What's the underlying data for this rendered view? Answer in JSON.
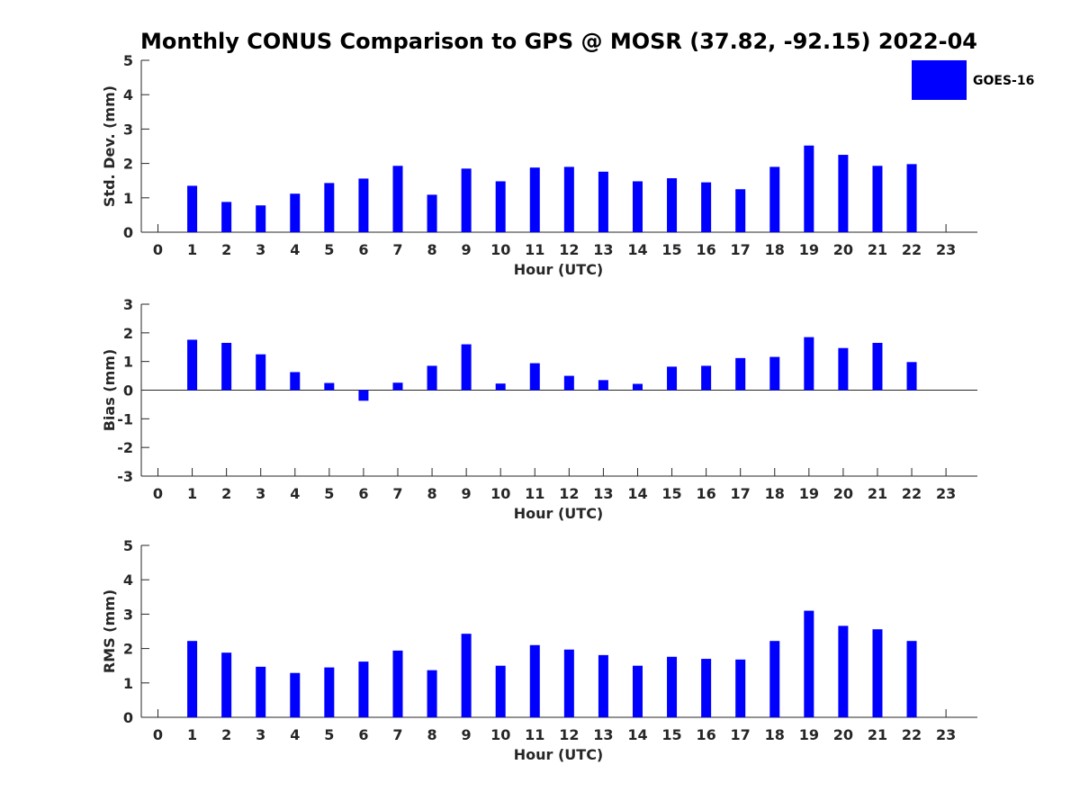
{
  "title": "Monthly CONUS Comparison to GPS @ MOSR (37.82, -92.15) 2022-04",
  "legend": {
    "label": "GOES-16",
    "color": "#0000ff"
  },
  "chart_data": [
    {
      "type": "bar",
      "name": "std-dev",
      "xlabel": "Hour (UTC)",
      "ylabel": "Std. Dev. (mm)",
      "ylim": [
        0,
        5
      ],
      "yticks": [
        "0",
        "1",
        "2",
        "3",
        "4",
        "5"
      ],
      "xticks": [
        "0",
        "1",
        "2",
        "3",
        "4",
        "5",
        "6",
        "7",
        "8",
        "9",
        "10",
        "11",
        "12",
        "13",
        "14",
        "15",
        "16",
        "17",
        "18",
        "19",
        "20",
        "21",
        "22",
        "23"
      ],
      "series": [
        {
          "name": "GOES-16",
          "color": "#0000ff",
          "values": [
            null,
            1.35,
            0.88,
            0.78,
            1.12,
            1.43,
            1.56,
            1.93,
            1.09,
            1.85,
            1.48,
            1.88,
            1.9,
            1.76,
            1.48,
            1.57,
            1.45,
            1.25,
            1.9,
            2.52,
            2.25,
            1.93,
            1.98,
            null
          ]
        }
      ]
    },
    {
      "type": "bar",
      "name": "bias",
      "xlabel": "Hour (UTC)",
      "ylabel": "Bias (mm)",
      "ylim": [
        -3,
        3
      ],
      "yticks": [
        "-3",
        "-2",
        "-1",
        "0",
        "1",
        "2",
        "3"
      ],
      "xticks": [
        "0",
        "1",
        "2",
        "3",
        "4",
        "5",
        "6",
        "7",
        "8",
        "9",
        "10",
        "11",
        "12",
        "13",
        "14",
        "15",
        "16",
        "17",
        "18",
        "19",
        "20",
        "21",
        "22",
        "23"
      ],
      "series": [
        {
          "name": "GOES-16",
          "color": "#0000ff",
          "values": [
            null,
            1.76,
            1.65,
            1.25,
            0.63,
            0.25,
            -0.37,
            0.26,
            0.85,
            1.6,
            0.23,
            0.94,
            0.5,
            0.35,
            0.22,
            0.82,
            0.85,
            1.12,
            1.16,
            1.85,
            1.47,
            1.65,
            0.98,
            null
          ]
        }
      ]
    },
    {
      "type": "bar",
      "name": "rms",
      "xlabel": "Hour (UTC)",
      "ylabel": "RMS (mm)",
      "ylim": [
        0,
        5
      ],
      "yticks": [
        "0",
        "1",
        "2",
        "3",
        "4",
        "5"
      ],
      "xticks": [
        "0",
        "1",
        "2",
        "3",
        "4",
        "5",
        "6",
        "7",
        "8",
        "9",
        "10",
        "11",
        "12",
        "13",
        "14",
        "15",
        "16",
        "17",
        "18",
        "19",
        "20",
        "21",
        "22",
        "23"
      ],
      "series": [
        {
          "name": "GOES-16",
          "color": "#0000ff",
          "values": [
            null,
            2.22,
            1.88,
            1.47,
            1.29,
            1.45,
            1.62,
            1.94,
            1.37,
            2.43,
            1.5,
            2.1,
            1.97,
            1.81,
            1.5,
            1.76,
            1.7,
            1.68,
            2.22,
            3.1,
            2.66,
            2.56,
            2.22,
            null
          ]
        }
      ]
    }
  ]
}
